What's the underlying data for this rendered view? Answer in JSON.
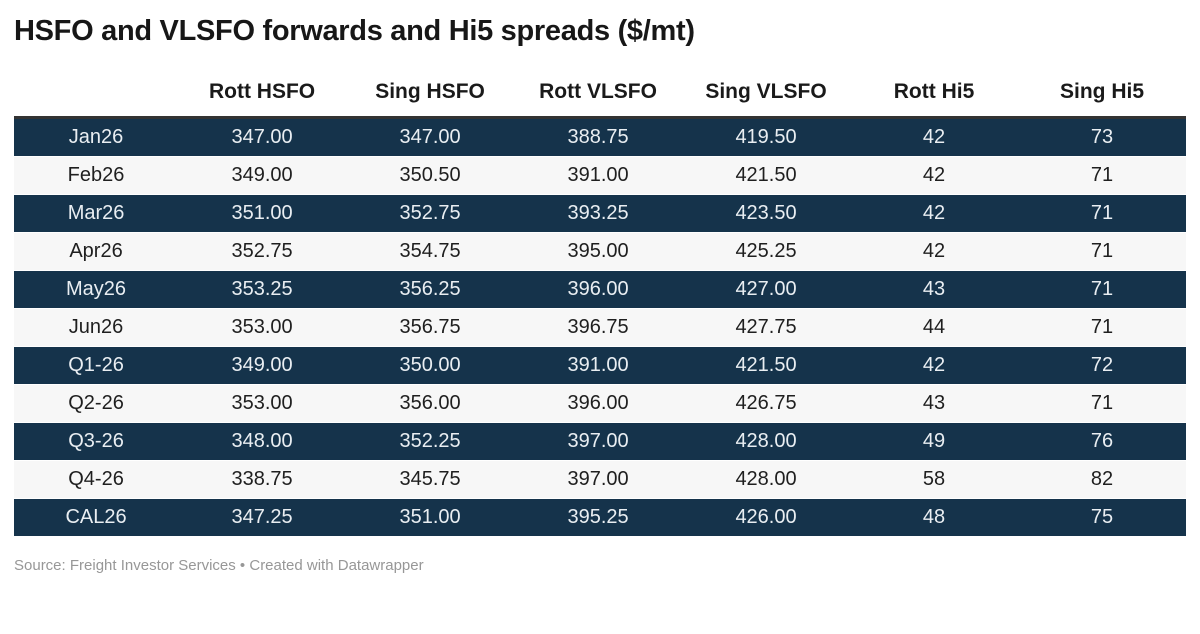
{
  "chart_data": {
    "type": "table",
    "title": "HSFO and VLSFO forwards and Hi5 spreads ($/mt)",
    "columns": [
      "",
      "Rott HSFO",
      "Sing HSFO",
      "Rott VLSFO",
      "Sing VLSFO",
      "Rott Hi5",
      "Sing Hi5"
    ],
    "rows": [
      {
        "label": "Jan26",
        "values": [
          "347.00",
          "347.00",
          "388.75",
          "419.50",
          "42",
          "73"
        ]
      },
      {
        "label": "Feb26",
        "values": [
          "349.00",
          "350.50",
          "391.00",
          "421.50",
          "42",
          "71"
        ]
      },
      {
        "label": "Mar26",
        "values": [
          "351.00",
          "352.75",
          "393.25",
          "423.50",
          "42",
          "71"
        ]
      },
      {
        "label": "Apr26",
        "values": [
          "352.75",
          "354.75",
          "395.00",
          "425.25",
          "42",
          "71"
        ]
      },
      {
        "label": "May26",
        "values": [
          "353.25",
          "356.25",
          "396.00",
          "427.00",
          "43",
          "71"
        ]
      },
      {
        "label": "Jun26",
        "values": [
          "353.00",
          "356.75",
          "396.75",
          "427.75",
          "44",
          "71"
        ]
      },
      {
        "label": "Q1-26",
        "values": [
          "349.00",
          "350.00",
          "391.00",
          "421.50",
          "42",
          "72"
        ]
      },
      {
        "label": "Q2-26",
        "values": [
          "353.00",
          "356.00",
          "396.00",
          "426.75",
          "43",
          "71"
        ]
      },
      {
        "label": "Q3-26",
        "values": [
          "348.00",
          "352.25",
          "397.00",
          "428.00",
          "49",
          "76"
        ]
      },
      {
        "label": "Q4-26",
        "values": [
          "338.75",
          "345.75",
          "397.00",
          "428.00",
          "58",
          "82"
        ]
      },
      {
        "label": "CAL26",
        "values": [
          "347.25",
          "351.00",
          "395.25",
          "426.00",
          "48",
          "75"
        ]
      }
    ],
    "layout_hints": {
      "stripe_pattern": "odd rows dark navy, even rows light gray",
      "alignment": "center"
    }
  },
  "footer": {
    "source_text": "Source: Freight Investor Services",
    "separator": " • ",
    "credit_text": "Created with Datawrapper"
  },
  "colors": {
    "row_dark": "#15334b",
    "row_light": "#f7f7f7",
    "top_border": "#333333",
    "text_on_dark": "#e9eef2",
    "text_on_light": "#1f1f1f",
    "header_text": "#1a1a1a",
    "title_text": "#171717",
    "footer_text": "#979797",
    "page_bg": "#ffffff"
  }
}
